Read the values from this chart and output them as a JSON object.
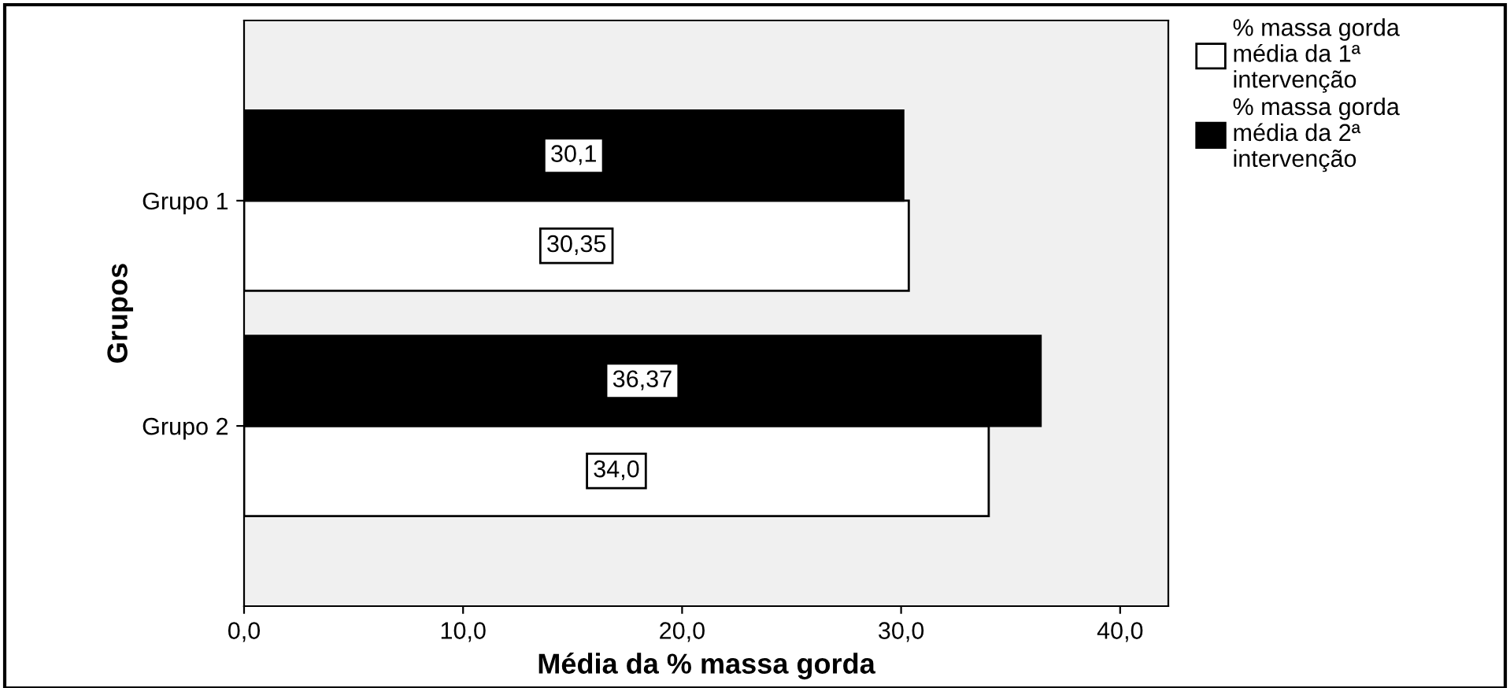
{
  "chart_data": {
    "type": "bar",
    "orientation": "horizontal",
    "xlabel": "Média da % massa gorda",
    "ylabel": "Grupos",
    "categories": [
      "Grupo 1",
      "Grupo 2"
    ],
    "series": [
      {
        "name": "% massa gorda\nmédia da 1ª\nintervenção",
        "color": "#ffffff",
        "values": [
          30.35,
          34.0
        ],
        "value_labels": [
          "30,35",
          "34,0"
        ]
      },
      {
        "name": "% massa gorda\nmédia da 2ª\nintervenção",
        "color": "#000000",
        "values": [
          30.1,
          36.37
        ],
        "value_labels": [
          "30,1",
          "36,37"
        ]
      }
    ],
    "xlim": [
      0,
      42.2
    ],
    "xticks": [
      {
        "value": 0,
        "label": "0,0"
      },
      {
        "value": 10,
        "label": "10,0"
      },
      {
        "value": 20,
        "label": "20,0"
      },
      {
        "value": 30,
        "label": "30,0"
      },
      {
        "value": 40,
        "label": "40,0"
      }
    ],
    "grid": false,
    "legend": "top right"
  }
}
